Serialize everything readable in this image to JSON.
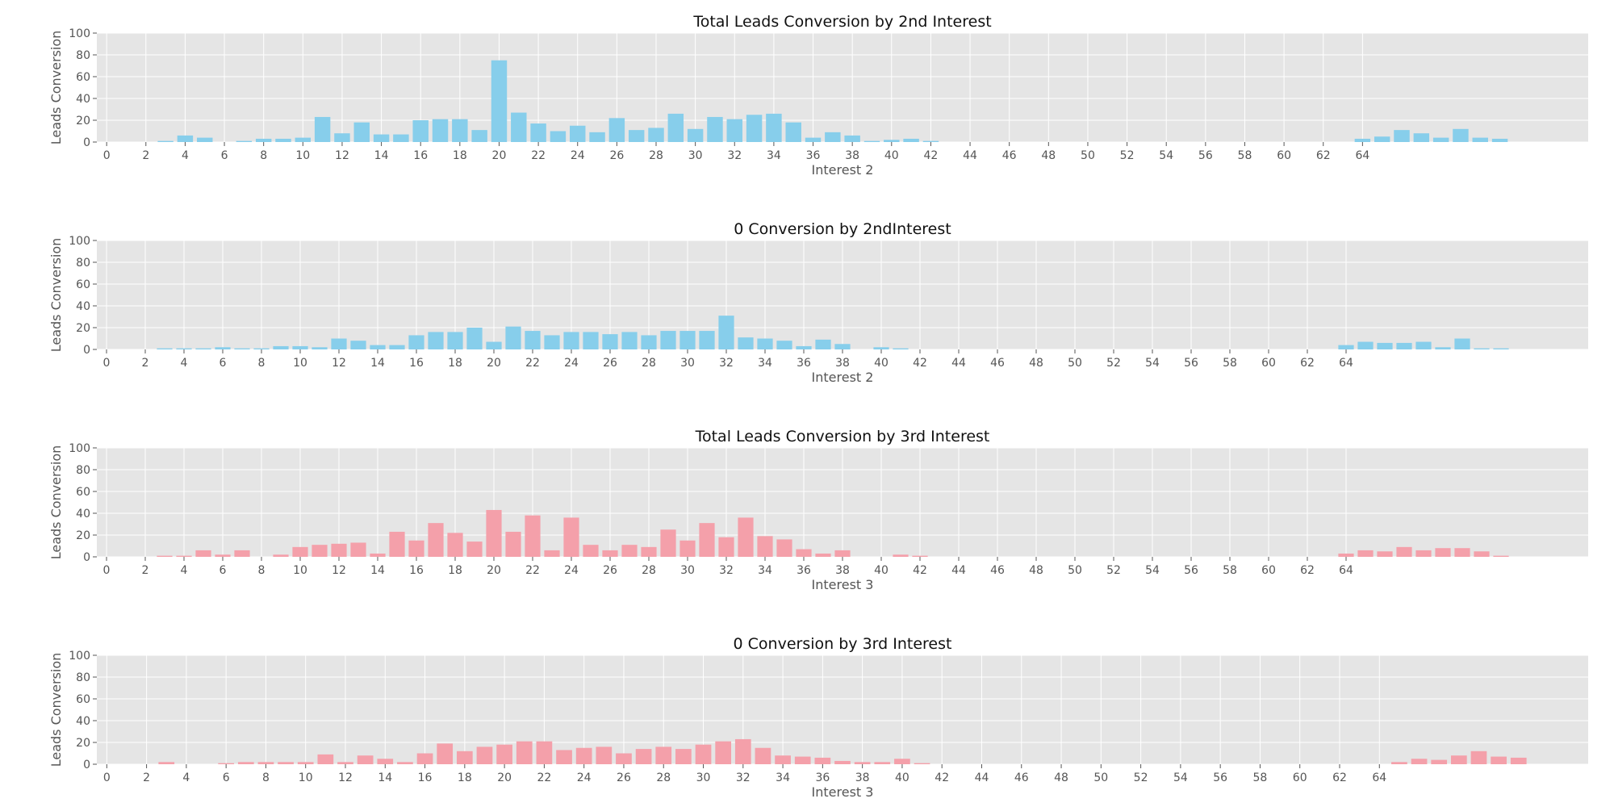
{
  "chart_data": [
    {
      "type": "bar",
      "title": "Total Leads Conversion by 2nd Interest",
      "xlabel": "Interest 2",
      "ylabel": "Leads Conversion",
      "ylim": [
        0,
        100
      ],
      "yticks": [
        0,
        20,
        40,
        60,
        80,
        100
      ],
      "xlim": [
        -0.5,
        75.5
      ],
      "xtick_values": [
        0,
        2,
        4,
        6,
        8,
        10,
        12,
        14,
        16,
        18,
        20,
        22,
        24,
        26,
        28,
        30,
        32,
        34,
        36,
        38,
        40,
        42,
        44,
        46,
        48,
        50,
        52,
        54,
        56,
        58,
        60,
        62,
        64
      ],
      "grid": true,
      "bar_color": "#87ceeb",
      "x": [
        2,
        3,
        4,
        5,
        6,
        7,
        8,
        9,
        10,
        11,
        12,
        13,
        14,
        15,
        16,
        17,
        18,
        19,
        20,
        21,
        22,
        23,
        24,
        25,
        26,
        27,
        28,
        29,
        30,
        31,
        32,
        33,
        34,
        35,
        36,
        37,
        38,
        39,
        40,
        41,
        42,
        43,
        44,
        45,
        46,
        47,
        48,
        49,
        50,
        51,
        52,
        53,
        54,
        55,
        56,
        57,
        58,
        59,
        60,
        61,
        62,
        63,
        64,
        65,
        66,
        67,
        68,
        69,
        70,
        71
      ],
      "values": [
        0,
        1,
        6,
        4,
        0,
        1,
        3,
        3,
        4,
        23,
        8,
        18,
        7,
        7,
        20,
        21,
        21,
        11,
        75,
        27,
        17,
        10,
        15,
        9,
        22,
        11,
        13,
        26,
        12,
        23,
        21,
        25,
        26,
        18,
        4,
        9,
        6,
        1,
        2,
        3,
        1,
        0,
        0,
        0,
        0,
        0,
        0,
        0,
        0,
        0,
        0,
        0,
        0,
        0,
        0,
        0,
        0,
        0,
        0,
        0,
        0,
        0,
        3,
        5,
        11,
        8,
        4,
        12,
        4,
        3
      ]
    },
    {
      "type": "bar",
      "title": "0 Conversion by 2ndInterest",
      "xlabel": "Interest 2",
      "ylabel": "Leads Conversion",
      "ylim": [
        0,
        100
      ],
      "yticks": [
        0,
        20,
        40,
        60,
        80,
        100
      ],
      "xlim": [
        -0.5,
        76.5
      ],
      "xtick_values": [
        0,
        2,
        4,
        6,
        8,
        10,
        12,
        14,
        16,
        18,
        20,
        22,
        24,
        26,
        28,
        30,
        32,
        34,
        36,
        38,
        40,
        42,
        44,
        46,
        48,
        50,
        52,
        54,
        56,
        58,
        60,
        62,
        64
      ],
      "grid": true,
      "bar_color": "#87ceeb",
      "x": [
        3,
        4,
        5,
        6,
        7,
        8,
        9,
        10,
        11,
        12,
        13,
        14,
        15,
        16,
        17,
        18,
        19,
        20,
        21,
        22,
        23,
        24,
        25,
        26,
        27,
        28,
        29,
        30,
        31,
        32,
        33,
        34,
        35,
        36,
        37,
        38,
        39,
        40,
        41,
        42,
        43,
        44,
        45,
        46,
        47,
        48,
        49,
        50,
        51,
        52,
        53,
        54,
        55,
        56,
        57,
        58,
        59,
        60,
        61,
        62,
        63,
        64,
        65,
        66,
        67,
        68,
        69,
        70,
        71,
        72
      ],
      "values": [
        1,
        1,
        1,
        2,
        1,
        1,
        3,
        3,
        2,
        10,
        8,
        4,
        4,
        13,
        16,
        16,
        20,
        7,
        21,
        17,
        13,
        16,
        16,
        14,
        16,
        13,
        17,
        17,
        17,
        31,
        11,
        10,
        8,
        3,
        9,
        5,
        0,
        2,
        1,
        0,
        0,
        0,
        0,
        0,
        0,
        0,
        0,
        0,
        0,
        0,
        0,
        0,
        0,
        0,
        0,
        0,
        0,
        0,
        0,
        0,
        0,
        4,
        7,
        6,
        6,
        7,
        2,
        10,
        1,
        1
      ]
    },
    {
      "type": "bar",
      "title": "Total Leads Conversion by 3rd Interest",
      "xlabel": "Interest 3",
      "ylabel": "Leads Conversion",
      "ylim": [
        0,
        100
      ],
      "yticks": [
        0,
        20,
        40,
        60,
        80,
        100
      ],
      "xlim": [
        -0.5,
        76.5
      ],
      "xtick_values": [
        0,
        2,
        4,
        6,
        8,
        10,
        12,
        14,
        16,
        18,
        20,
        22,
        24,
        26,
        28,
        30,
        32,
        34,
        36,
        38,
        40,
        42,
        44,
        46,
        48,
        50,
        52,
        54,
        56,
        58,
        60,
        62,
        64
      ],
      "grid": true,
      "bar_color": "#f4a0aa",
      "x": [
        3,
        4,
        5,
        6,
        7,
        8,
        9,
        10,
        11,
        12,
        13,
        14,
        15,
        16,
        17,
        18,
        19,
        20,
        21,
        22,
        23,
        24,
        25,
        26,
        27,
        28,
        29,
        30,
        31,
        32,
        33,
        34,
        35,
        36,
        37,
        38,
        39,
        40,
        41,
        42,
        43,
        44,
        45,
        46,
        47,
        48,
        49,
        50,
        51,
        52,
        53,
        54,
        55,
        56,
        57,
        58,
        59,
        60,
        61,
        62,
        63,
        64,
        65,
        66,
        67,
        68,
        69,
        70,
        71,
        72
      ],
      "values": [
        1,
        1,
        6,
        2,
        6,
        0,
        2,
        9,
        11,
        12,
        13,
        3,
        23,
        15,
        31,
        22,
        14,
        43,
        23,
        38,
        6,
        36,
        11,
        6,
        11,
        9,
        25,
        15,
        31,
        18,
        36,
        19,
        16,
        7,
        3,
        6,
        0,
        0,
        2,
        1,
        0,
        0,
        0,
        0,
        0,
        0,
        0,
        0,
        0,
        0,
        0,
        0,
        0,
        0,
        0,
        0,
        0,
        0,
        0,
        0,
        0,
        3,
        6,
        5,
        9,
        6,
        8,
        8,
        5,
        1
      ]
    },
    {
      "type": "bar",
      "title": "0 Conversion by 3rd Interest",
      "xlabel": "Interest 3",
      "ylabel": "Leads Conversion",
      "ylim": [
        0,
        100
      ],
      "yticks": [
        0,
        20,
        40,
        60,
        80,
        100
      ],
      "xlim": [
        -0.5,
        74.5
      ],
      "xtick_values": [
        0,
        2,
        4,
        6,
        8,
        10,
        12,
        14,
        16,
        18,
        20,
        22,
        24,
        26,
        28,
        30,
        32,
        34,
        36,
        38,
        40,
        42,
        44,
        46,
        48,
        50,
        52,
        54,
        56,
        58,
        60,
        62,
        64
      ],
      "grid": true,
      "bar_color": "#f4a0aa",
      "x": [
        3,
        4,
        5,
        6,
        7,
        8,
        9,
        10,
        11,
        12,
        13,
        14,
        15,
        16,
        17,
        18,
        19,
        20,
        21,
        22,
        23,
        24,
        25,
        26,
        27,
        28,
        29,
        30,
        31,
        32,
        33,
        34,
        35,
        36,
        37,
        38,
        39,
        40,
        41,
        42,
        43,
        44,
        45,
        46,
        47,
        48,
        49,
        50,
        51,
        52,
        53,
        54,
        55,
        56,
        57,
        58,
        59,
        60,
        61,
        62,
        63,
        64,
        65,
        66,
        67,
        68,
        69,
        70,
        71
      ],
      "values": [
        2,
        0,
        0,
        1,
        2,
        2,
        2,
        2,
        9,
        2,
        8,
        5,
        2,
        10,
        19,
        12,
        16,
        18,
        21,
        21,
        13,
        15,
        16,
        10,
        14,
        16,
        14,
        18,
        21,
        23,
        15,
        8,
        7,
        6,
        3,
        2,
        2,
        5,
        1,
        0,
        0,
        0,
        0,
        0,
        0,
        0,
        0,
        0,
        0,
        0,
        0,
        0,
        0,
        0,
        0,
        0,
        0,
        0,
        0,
        0,
        0,
        0,
        2,
        5,
        4,
        8,
        12,
        7,
        6
      ]
    }
  ]
}
